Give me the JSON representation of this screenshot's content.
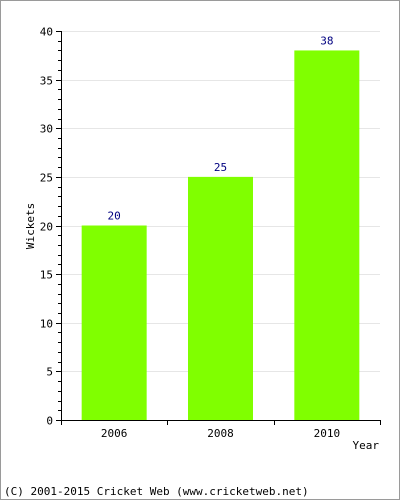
{
  "chart_data": {
    "type": "bar",
    "categories": [
      "2006",
      "2008",
      "2010"
    ],
    "values": [
      20,
      25,
      38
    ],
    "data_labels": [
      "20",
      "25",
      "38"
    ],
    "title": "",
    "xlabel": "Year",
    "ylabel": "Wickets",
    "ylim": [
      0,
      40
    ],
    "yticks": [
      0,
      5,
      10,
      15,
      20,
      25,
      30,
      35,
      40
    ],
    "ytick_labels": [
      "0",
      "5",
      "10",
      "15",
      "20",
      "25",
      "30",
      "35",
      "40"
    ],
    "minor_ticks_per_major": 5,
    "grid": true,
    "legend": "none",
    "colors": {
      "bar": "#80ff00",
      "data_label": "#000080",
      "grid": "#e6e6e6",
      "axis": "#000000"
    }
  },
  "footer": {
    "copyright": "(C) 2001-2015 Cricket Web (www.cricketweb.net)"
  }
}
